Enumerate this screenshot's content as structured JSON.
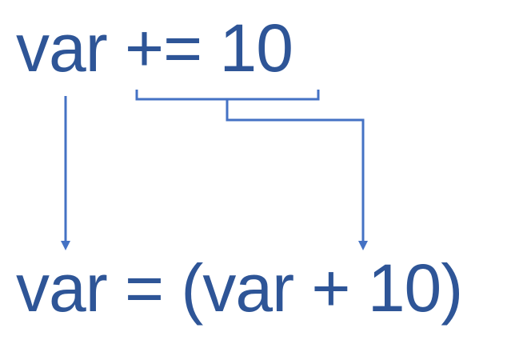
{
  "colors": {
    "text": "#2e5597",
    "connector": "#4472c4",
    "background": "#ffffff"
  },
  "diagram": {
    "top_expression": "var += 10",
    "bottom_expression": "var = (var + 10)",
    "connectors": [
      {
        "name": "var-arrow",
        "from": "var",
        "to": "var",
        "style": "arrow"
      },
      {
        "name": "operator-brace-arrow",
        "from": "+= 10",
        "to": "var + 10",
        "style": "bracket-with-arrow"
      }
    ]
  }
}
